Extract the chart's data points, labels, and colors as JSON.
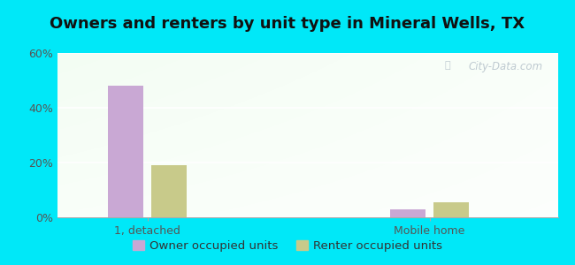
{
  "title": "Owners and renters by unit type in Mineral Wells, TX",
  "categories": [
    "1, detached",
    "Mobile home"
  ],
  "owner_values": [
    48.0,
    3.0
  ],
  "renter_values": [
    19.0,
    5.5
  ],
  "owner_color": "#c9a8d4",
  "renter_color": "#c8ca8a",
  "owner_label": "Owner occupied units",
  "renter_label": "Renter occupied units",
  "ylim": [
    0,
    60
  ],
  "yticks": [
    0,
    20,
    40,
    60
  ],
  "ytick_labels": [
    "0%",
    "20%",
    "40%",
    "60%"
  ],
  "background_outer": "#00e8f8",
  "bar_width": 0.28,
  "group_positions": [
    1.0,
    3.2
  ],
  "watermark": "City-Data.com",
  "title_fontsize": 13,
  "tick_fontsize": 9,
  "legend_fontsize": 9.5
}
